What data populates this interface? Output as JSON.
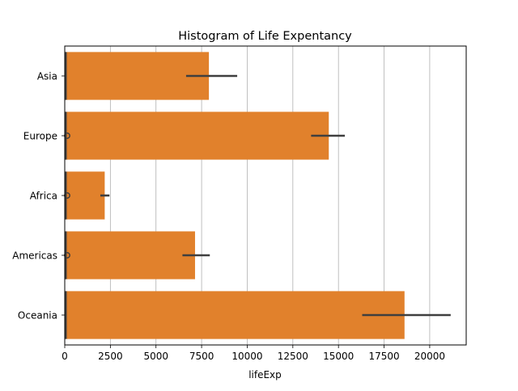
{
  "chart_data": {
    "type": "bar",
    "orientation": "horizontal",
    "title": "Histogram of Life Expentancy",
    "xlabel": "lifeExp",
    "ylabel": "",
    "xlim": [
      0,
      22000
    ],
    "xticks": [
      0,
      2500,
      5000,
      7500,
      10000,
      12500,
      15000,
      17500,
      20000
    ],
    "xtick_labels": [
      "0",
      "2500",
      "5000",
      "7500",
      "10000",
      "12500",
      "15000",
      "17500",
      "20000"
    ],
    "grid": "vertical",
    "categories": [
      "Asia",
      "Europe",
      "Africa",
      "Americas",
      "Oceania"
    ],
    "values": [
      7900,
      14470,
      2190,
      7140,
      18620
    ],
    "error_intervals": [
      [
        6650,
        9450
      ],
      [
        13500,
        15350
      ],
      [
        1950,
        2450
      ],
      [
        6450,
        7950
      ],
      [
        16300,
        21150
      ]
    ],
    "box_overlay": {
      "description": "thin box plots near zero",
      "box": [
        [
          0,
          60
        ],
        [
          0,
          80
        ],
        [
          0,
          60
        ],
        [
          0,
          60
        ],
        [
          0,
          80
        ]
      ],
      "outlier_markers": [
        false,
        true,
        true,
        true,
        false
      ]
    },
    "colors": {
      "bar": "#e1812c",
      "errorbar": "#3f3f3f",
      "box": "#3f3f3f",
      "grid": "#b0b0b0",
      "axis": "#000000"
    }
  }
}
